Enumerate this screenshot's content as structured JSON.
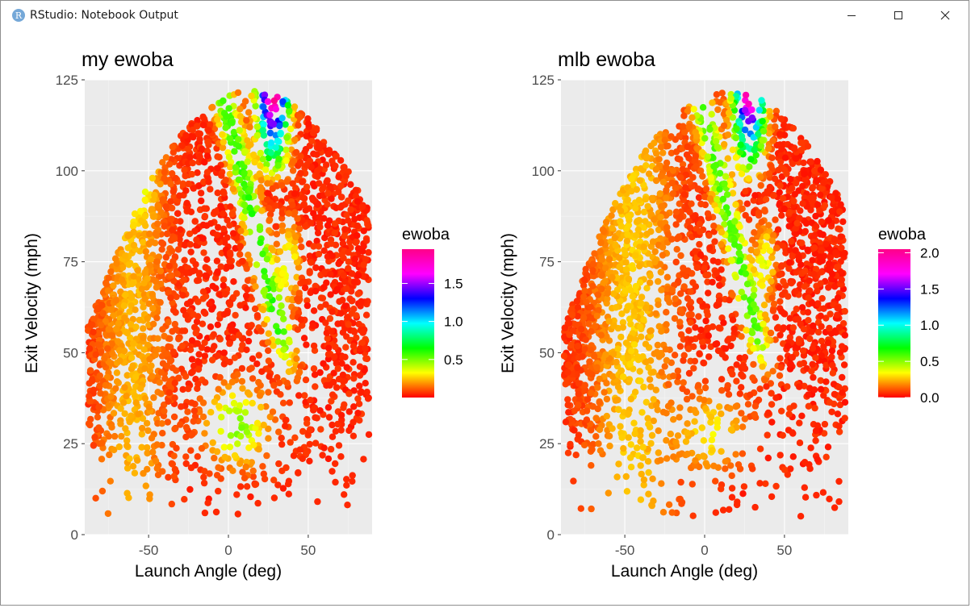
{
  "window": {
    "title": "RStudio: Notebook Output",
    "icon": "R",
    "controls": [
      "minimize",
      "maximize",
      "close"
    ]
  },
  "chart_data": [
    {
      "type": "scatter",
      "title": "my ewoba",
      "xlabel": "Launch Angle (deg)",
      "ylabel": "Exit Velocity (mph)",
      "xlim": [
        -90,
        90
      ],
      "ylim": [
        0,
        125
      ],
      "xticks": [
        -50,
        0,
        50
      ],
      "xtick_labels": [
        "-50",
        "0",
        "50"
      ],
      "yticks": [
        0,
        25,
        50,
        75,
        100,
        125
      ],
      "ytick_labels": [
        "0",
        "25",
        "50",
        "75",
        "100",
        "125"
      ],
      "grid": true,
      "background": "#ebebeb",
      "legend": {
        "title": "ewoba",
        "position": "right",
        "type": "colorbar",
        "min": 0,
        "max": 1.95,
        "breaks": [
          0.5,
          1.0,
          1.5
        ],
        "break_labels": [
          "0.5",
          "1.0",
          "1.5"
        ],
        "colors": [
          "#ff0000",
          "#ffff00",
          "#00ff00",
          "#00ffff",
          "#0000ff",
          "#ff00ff",
          "#ff0088"
        ]
      },
      "description_of_density": "dense cloud of points spanning launch angle -85 to 85 and exit velocity 5 to 122"
    },
    {
      "type": "scatter",
      "title": "mlb ewoba",
      "xlabel": "Launch Angle (deg)",
      "ylabel": "Exit Velocity (mph)",
      "xlim": [
        -90,
        90
      ],
      "ylim": [
        0,
        125
      ],
      "xticks": [
        -50,
        0,
        50
      ],
      "xtick_labels": [
        "-50",
        "0",
        "50"
      ],
      "yticks": [
        0,
        25,
        50,
        75,
        100,
        125
      ],
      "ytick_labels": [
        "0",
        "25",
        "50",
        "75",
        "100",
        "125"
      ],
      "grid": true,
      "background": "#ebebeb",
      "legend": {
        "title": "ewoba",
        "position": "right",
        "type": "colorbar",
        "min": 0,
        "max": 2.05,
        "breaks": [
          0.0,
          0.5,
          1.0,
          1.5,
          2.0
        ],
        "break_labels": [
          "0.0",
          "0.5",
          "1.0",
          "1.5",
          "2.0"
        ],
        "colors": [
          "#ff0000",
          "#ffff00",
          "#00ff00",
          "#00ffff",
          "#0000ff",
          "#ff00ff",
          "#ff0088"
        ]
      }
    }
  ]
}
